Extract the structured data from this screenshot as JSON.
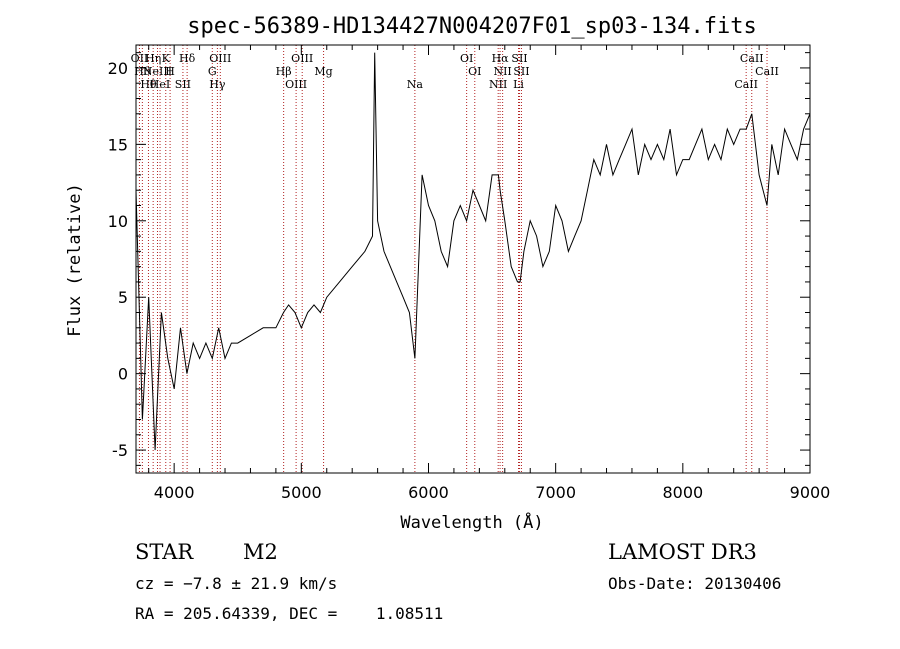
{
  "chart_data": {
    "type": "line",
    "title": "spec-56389-HD134427N004207F01_sp03-134.fits",
    "xlabel": "Wavelength (Å)",
    "ylabel": "Flux (relative)",
    "xlim": [
      3700,
      9000
    ],
    "ylim": [
      -6.5,
      21.5
    ],
    "xticks": [
      4000,
      5000,
      6000,
      7000,
      8000,
      9000
    ],
    "yticks": [
      -5,
      0,
      5,
      10,
      15,
      20
    ],
    "grid": false,
    "series": [
      {
        "x": [
          3700,
          3750,
          3800,
          3850,
          3900,
          3950,
          4000,
          4050,
          4100,
          4150,
          4200,
          4250,
          4300,
          4350,
          4400,
          4450,
          4500,
          4600,
          4700,
          4800,
          4860,
          4900,
          4950,
          5000,
          5050,
          5100,
          5150,
          5200,
          5300,
          5400,
          5500,
          5560,
          5577,
          5600,
          5650,
          5700,
          5750,
          5800,
          5850,
          5893,
          5950,
          6000,
          6050,
          6100,
          6150,
          6200,
          6250,
          6300,
          6350,
          6400,
          6450,
          6500,
          6550,
          6563,
          6600,
          6650,
          6700,
          6720,
          6750,
          6800,
          6850,
          6900,
          6950,
          7000,
          7050,
          7100,
          7150,
          7200,
          7250,
          7300,
          7350,
          7400,
          7450,
          7500,
          7550,
          7600,
          7650,
          7700,
          7750,
          7800,
          7850,
          7900,
          7950,
          8000,
          8050,
          8100,
          8150,
          8200,
          8250,
          8300,
          8350,
          8400,
          8450,
          8498,
          8542,
          8600,
          8662,
          8700,
          8750,
          8800,
          8850,
          8900,
          8950,
          9000
        ],
        "y": [
          12,
          -3,
          5,
          -5,
          4,
          1,
          -1,
          3,
          0,
          2,
          1,
          2,
          1,
          3,
          1,
          2,
          2,
          2.5,
          3,
          3,
          4,
          4.5,
          4,
          3,
          4,
          4.5,
          4,
          5,
          6,
          7,
          8,
          9,
          21,
          10,
          8,
          7,
          6,
          5,
          4,
          1,
          13,
          11,
          10,
          8,
          7,
          10,
          11,
          10,
          12,
          11,
          10,
          13,
          13,
          12,
          10,
          7,
          6,
          6,
          8,
          10,
          9,
          7,
          8,
          11,
          10,
          8,
          9,
          10,
          12,
          14,
          13,
          15,
          13,
          14,
          15,
          16,
          13,
          15,
          14,
          15,
          14,
          16,
          13,
          14,
          14,
          15,
          16,
          14,
          15,
          14,
          16,
          15,
          16,
          16,
          17,
          13,
          11,
          15,
          13,
          16,
          15,
          14,
          16,
          17
        ]
      }
    ],
    "lines": [
      {
        "wl": 3727,
        "label": "OII"
      },
      {
        "wl": 3750,
        "label": "Hθ"
      },
      {
        "wl": 3798,
        "label": "Hθ"
      },
      {
        "wl": 3835,
        "label": "Hη"
      },
      {
        "wl": 3869,
        "label": "NeIII"
      },
      {
        "wl": 3889,
        "label": "HeI"
      },
      {
        "wl": 3934,
        "label": "K"
      },
      {
        "wl": 3968,
        "label": "H"
      },
      {
        "wl": 4069,
        "label": "SII"
      },
      {
        "wl": 4102,
        "label": "Hδ"
      },
      {
        "wl": 4300,
        "label": "G"
      },
      {
        "wl": 4340,
        "label": "Hγ"
      },
      {
        "wl": 4363,
        "label": "OIII"
      },
      {
        "wl": 4861,
        "label": "Hβ"
      },
      {
        "wl": 4959,
        "label": "OIII"
      },
      {
        "wl": 5007,
        "label": "OIII"
      },
      {
        "wl": 5175,
        "label": "Mg"
      },
      {
        "wl": 5893,
        "label": "Na"
      },
      {
        "wl": 6300,
        "label": "OI"
      },
      {
        "wl": 6364,
        "label": "OI"
      },
      {
        "wl": 6548,
        "label": "NII"
      },
      {
        "wl": 6563,
        "label": "Hα"
      },
      {
        "wl": 6583,
        "label": "NII"
      },
      {
        "wl": 6708,
        "label": "Li"
      },
      {
        "wl": 6716,
        "label": "SII"
      },
      {
        "wl": 6731,
        "label": "SII"
      },
      {
        "wl": 8498,
        "label": "CaII"
      },
      {
        "wl": 8542,
        "label": "CaII"
      },
      {
        "wl": 8662,
        "label": "CaII"
      }
    ],
    "line_color": "#000000",
    "marker_color": "#b22222"
  },
  "info": {
    "class": "STAR",
    "subclass": "M2",
    "survey": "LAMOST DR3",
    "cz": "cz = −7.8 ± 21.9 km/s",
    "obs_date": "Obs-Date: 20130406",
    "radec": "RA = 205.64339, DEC =    1.08511"
  }
}
